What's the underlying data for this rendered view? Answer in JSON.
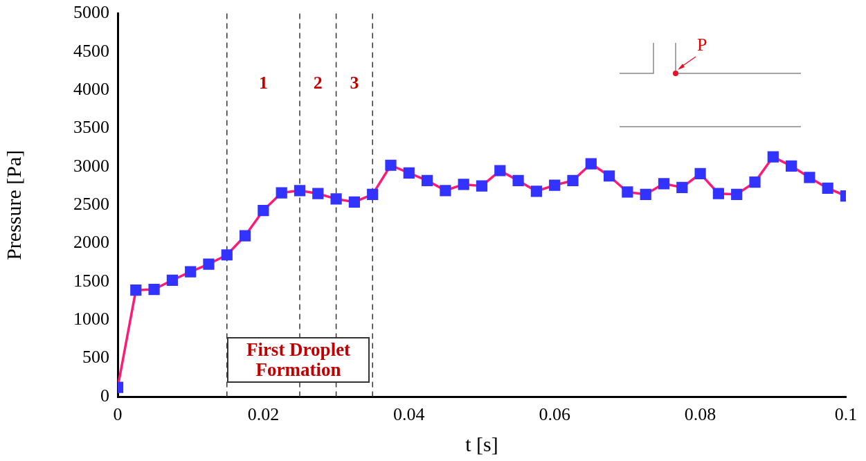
{
  "chart_data": {
    "type": "line",
    "xlabel": "t [s]",
    "ylabel": "Pressure [Pa]",
    "x": [
      0,
      0.0025,
      0.005,
      0.0075,
      0.01,
      0.0125,
      0.015,
      0.0175,
      0.02,
      0.0225,
      0.025,
      0.0275,
      0.03,
      0.0325,
      0.035,
      0.0375,
      0.04,
      0.0425,
      0.045,
      0.0475,
      0.05,
      0.0525,
      0.055,
      0.0575,
      0.06,
      0.0625,
      0.065,
      0.0675,
      0.07,
      0.0725,
      0.075,
      0.0775,
      0.08,
      0.0825,
      0.085,
      0.0875,
      0.09,
      0.0925,
      0.095,
      0.0975,
      0.1
    ],
    "series": [
      {
        "color": "#ff1a75",
        "colors": [
          "#3333ff",
          "#3333ff",
          "#3333ff",
          "#3333ff",
          "#3333ff",
          "#3333ff",
          "#3333ff",
          "#3333ff",
          "#3333ff",
          "#3333ff",
          "#3333ff",
          "#3333ff",
          "#3333ff",
          "#3333ff",
          "#3333ff",
          "#3333ff",
          "#3333ff",
          "#3333ff",
          "#3333ff",
          "#3333ff",
          "#3333ff",
          "#3333ff",
          "#3333ff",
          "#3333ff",
          "#3333ff",
          "#3333ff",
          "#3333ff",
          "#3333ff",
          "#3333ff",
          "#3333ff",
          "#3333ff",
          "#3333ff",
          "#3333ff",
          "#3333ff",
          "#3333ff",
          "#3333ff",
          "#3333ff",
          "#3333ff",
          "#3333ff",
          "#3333ff",
          "#3333ff"
        ],
        "values": [
          120,
          1390,
          1400,
          1520,
          1630,
          1730,
          1850,
          2100,
          2430,
          2660,
          2690,
          2650,
          2580,
          2540,
          2640,
          3020,
          2920,
          2820,
          2690,
          2770,
          2750,
          2950,
          2820,
          2680,
          2760,
          2820,
          3040,
          2880,
          2670,
          2640,
          2780,
          2730,
          2910,
          2650,
          2640,
          2800,
          3130,
          3010,
          2860,
          2720,
          2620
        ]
      }
    ],
    "marker": "square",
    "xlim": [
      0,
      0.1
    ],
    "xticks": [
      0,
      0.02,
      0.04,
      0.06,
      0.08,
      0.1
    ],
    "ylim": [
      0,
      5000
    ],
    "yticks": [
      0,
      500,
      1000,
      1500,
      2000,
      2500,
      3000,
      3500,
      4000,
      4500,
      5000
    ],
    "grid": false,
    "legend": false,
    "ref_lines": [
      {
        "axis": "x",
        "value": 0.015,
        "color": "#333333",
        "line_style": "dashed"
      },
      {
        "axis": "x",
        "value": 0.025,
        "color": "#333333",
        "line_style": "dashed"
      },
      {
        "axis": "x",
        "value": 0.03,
        "color": "#333333",
        "line_style": "dashed"
      },
      {
        "axis": "x",
        "value": 0.035,
        "color": "#333333",
        "line_style": "dashed"
      }
    ],
    "annotations": [
      "First Droplet Formation",
      "1",
      "2",
      "3",
      "P"
    ]
  }
}
